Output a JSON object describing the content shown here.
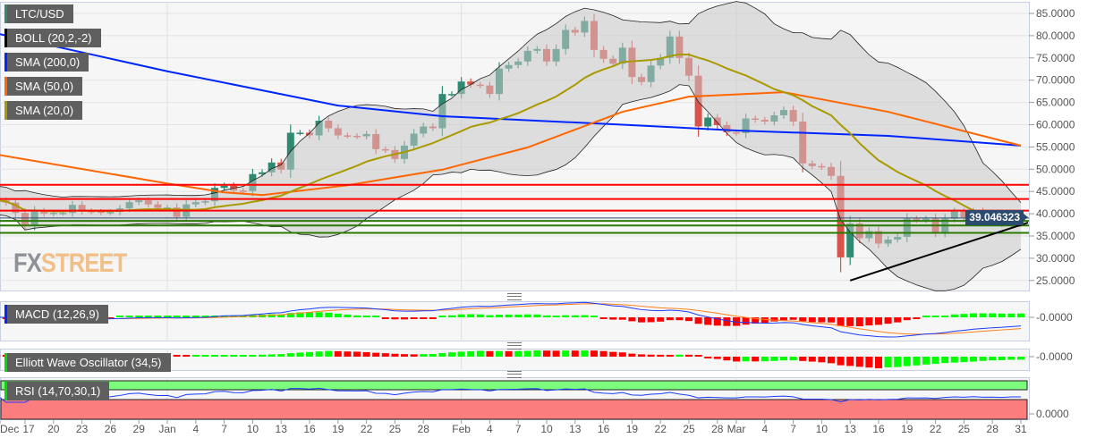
{
  "legend": {
    "symbol": {
      "label": "LTC/USD",
      "color": "#2e8b72"
    },
    "boll": {
      "label": "BOLL (20,2,-2)",
      "color": "#000000"
    },
    "sma200": {
      "label": "SMA (200,0)",
      "color": "#0026ff"
    },
    "sma50": {
      "label": "SMA (50,0)",
      "color": "#ff6600"
    },
    "sma20": {
      "label": "SMA (20,0)",
      "color": "#a89a00"
    }
  },
  "panels": {
    "macd": {
      "label": "MACD (12,26,9)",
      "axis_label": "-0.0000",
      "color": "#0026ff"
    },
    "ewo": {
      "label": "Elliott Wave Oscillator (34,5)",
      "axis_label": "-0.0000",
      "color": "#00dd00"
    },
    "rsi": {
      "label": "RSI (14,70,30,1)",
      "axis_label": "0.0000",
      "color": "#00dd00"
    }
  },
  "price_tag": "39.046323",
  "watermark": {
    "fx": "FX",
    "street": "STREET"
  },
  "colors": {
    "up": "#2e8b72",
    "down": "#d9534a",
    "resistance": "#ff0000",
    "support": "#2a7a00",
    "trendline": "#000000",
    "price_line": "#2b4a6f",
    "hist_up": "#00ff00",
    "hist_down": "#ff0000"
  },
  "chart_data": {
    "type": "candlestick",
    "y_axis": {
      "range": [
        22,
        87
      ],
      "ticks": [
        "85.0000",
        "80.0000",
        "75.0000",
        "70.0000",
        "65.0000",
        "60.0000",
        "55.0000",
        "50.0000",
        "45.0000",
        "40.0000",
        "35.0000",
        "30.0000",
        "25.0000"
      ],
      "tick_values": [
        85,
        80,
        75,
        70,
        65,
        60,
        55,
        50,
        45,
        40,
        35,
        30,
        25
      ]
    },
    "x_ticks": [
      {
        "date": "Dec 14",
        "label": "Dec"
      },
      {
        "date": "Dec 17",
        "label": "17"
      },
      {
        "date": "Dec 20",
        "label": "20"
      },
      {
        "date": "Dec 23",
        "label": "23"
      },
      {
        "date": "Dec 26",
        "label": "26"
      },
      {
        "date": "Dec 29",
        "label": "29"
      },
      {
        "date": "Jan 1",
        "label": "Jan"
      },
      {
        "date": "Jan 4",
        "label": "4"
      },
      {
        "date": "Jan 7",
        "label": "7"
      },
      {
        "date": "Jan 10",
        "label": "10"
      },
      {
        "date": "Jan 13",
        "label": "13"
      },
      {
        "date": "Jan 16",
        "label": "16"
      },
      {
        "date": "Jan 19",
        "label": "19"
      },
      {
        "date": "Jan 22",
        "label": "22"
      },
      {
        "date": "Jan 25",
        "label": "25"
      },
      {
        "date": "Jan 28",
        "label": "28"
      },
      {
        "date": "Feb 1",
        "label": "Feb"
      },
      {
        "date": "Feb 4",
        "label": "4"
      },
      {
        "date": "Feb 7",
        "label": "7"
      },
      {
        "date": "Feb 10",
        "label": "10"
      },
      {
        "date": "Feb 13",
        "label": "13"
      },
      {
        "date": "Feb 16",
        "label": "16"
      },
      {
        "date": "Feb 19",
        "label": "19"
      },
      {
        "date": "Feb 22",
        "label": "22"
      },
      {
        "date": "Feb 25",
        "label": "25"
      },
      {
        "date": "Feb 28",
        "label": "28"
      },
      {
        "date": "Mar 1",
        "label": "Mar"
      },
      {
        "date": "Mar 4",
        "label": "4"
      },
      {
        "date": "Mar 7",
        "label": "7"
      },
      {
        "date": "Mar 10",
        "label": "10"
      },
      {
        "date": "Mar 13",
        "label": "13"
      },
      {
        "date": "Mar 16",
        "label": "16"
      },
      {
        "date": "Mar 19",
        "label": "19"
      },
      {
        "date": "Mar 22",
        "label": "22"
      },
      {
        "date": "Mar 25",
        "label": "25"
      },
      {
        "date": "Mar 28",
        "label": "28"
      },
      {
        "date": "Mar 31",
        "label": "31"
      }
    ],
    "month_starts": [
      "Jan 1",
      "Feb 1",
      "Mar 1"
    ],
    "dates": [
      "Dec 14",
      "Dec 15",
      "Dec 16",
      "Dec 17",
      "Dec 18",
      "Dec 19",
      "Dec 20",
      "Dec 21",
      "Dec 22",
      "Dec 23",
      "Dec 24",
      "Dec 25",
      "Dec 26",
      "Dec 27",
      "Dec 28",
      "Dec 29",
      "Dec 30",
      "Dec 31",
      "Jan 1",
      "Jan 2",
      "Jan 3",
      "Jan 4",
      "Jan 5",
      "Jan 6",
      "Jan 7",
      "Jan 8",
      "Jan 9",
      "Jan 10",
      "Jan 11",
      "Jan 12",
      "Jan 13",
      "Jan 14",
      "Jan 15",
      "Jan 16",
      "Jan 17",
      "Jan 18",
      "Jan 19",
      "Jan 20",
      "Jan 21",
      "Jan 22",
      "Jan 23",
      "Jan 24",
      "Jan 25",
      "Jan 26",
      "Jan 27",
      "Jan 28",
      "Jan 29",
      "Jan 30",
      "Jan 31",
      "Feb 1",
      "Feb 2",
      "Feb 3",
      "Feb 4",
      "Feb 5",
      "Feb 6",
      "Feb 7",
      "Feb 8",
      "Feb 9",
      "Feb 10",
      "Feb 11",
      "Feb 12",
      "Feb 13",
      "Feb 14",
      "Feb 15",
      "Feb 16",
      "Feb 17",
      "Feb 18",
      "Feb 19",
      "Feb 20",
      "Feb 21",
      "Feb 22",
      "Feb 23",
      "Feb 24",
      "Feb 25",
      "Feb 26",
      "Feb 27",
      "Feb 28",
      "Feb 29",
      "Mar 1",
      "Mar 2",
      "Mar 3",
      "Mar 4",
      "Mar 5",
      "Mar 6",
      "Mar 7",
      "Mar 8",
      "Mar 9",
      "Mar 10",
      "Mar 11",
      "Mar 12",
      "Mar 13",
      "Mar 14",
      "Mar 15",
      "Mar 16",
      "Mar 17",
      "Mar 18",
      "Mar 19",
      "Mar 20",
      "Mar 21",
      "Mar 22",
      "Mar 23",
      "Mar 24",
      "Mar 25",
      "Mar 26",
      "Mar 27",
      "Mar 28",
      "Mar 29",
      "Mar 30",
      "Mar 31"
    ],
    "close": [
      43.0,
      42.5,
      40.2,
      37.4,
      40.6,
      40.0,
      40.2,
      40.2,
      42.0,
      40.6,
      40.5,
      40.3,
      40.4,
      41.2,
      42.6,
      43.0,
      42.1,
      41.3,
      41.4,
      39.3,
      42.1,
      42.6,
      42.8,
      45.8,
      46.3,
      45.2,
      45.1,
      48.9,
      49.3,
      51.5,
      49.9,
      58.2,
      58.2,
      57.6,
      60.9,
      59.2,
      57.6,
      57.5,
      57.4,
      57.9,
      54.5,
      54.3,
      52.3,
      55.3,
      58.0,
      59.6,
      59.2,
      66.9,
      66.9,
      69.7,
      69.0,
      68.8,
      66.9,
      72.6,
      73.4,
      74.2,
      76.6,
      77.0,
      74.2,
      77.0,
      81.3,
      80.7,
      83.3,
      76.8,
      74.8,
      73.7,
      77.3,
      70.7,
      69.6,
      73.3,
      75.0,
      79.8,
      75.0,
      71.0,
      59.6,
      61.6,
      59.9,
      58.3,
      58.1,
      61.4,
      61.1,
      60.7,
      62.1,
      63.3,
      60.7,
      51.3,
      50.7,
      50.5,
      48.5,
      30.2,
      37.8,
      34.5,
      36.1,
      33.3,
      34.2,
      34.8,
      38.9,
      38.6,
      38.9,
      35.8,
      38.9,
      40.5,
      39.2,
      40.5,
      38.6,
      38.9,
      37.7,
      38.9,
      39.05
    ],
    "sma200": [
      [
        "Dec 14",
        80.5
      ],
      [
        "Jan 1",
        72.0
      ],
      [
        "Jan 19",
        64.3
      ],
      [
        "Jan 30",
        61.9
      ],
      [
        "Feb 18",
        60.0
      ],
      [
        "Mar 1",
        58.7
      ],
      [
        "Mar 17",
        57.5
      ],
      [
        "Mar 31",
        55.3
      ]
    ],
    "sma50": [
      [
        "Dec 14",
        53.3
      ],
      [
        "Jan 1",
        46.8
      ],
      [
        "Jan 7",
        44.8
      ],
      [
        "Jan 11",
        44.2
      ],
      [
        "Jan 20",
        46.4
      ],
      [
        "Jan 30",
        49.9
      ],
      [
        "Feb 8",
        54.9
      ],
      [
        "Feb 18",
        62.9
      ],
      [
        "Feb 25",
        66.3
      ],
      [
        "Mar 6",
        67.3
      ],
      [
        "Mar 17",
        62.9
      ],
      [
        "Mar 31",
        55.3
      ]
    ],
    "resistance_levels": [
      46.5,
      43.3,
      40.7
    ],
    "support_levels": [
      38.4,
      37.35,
      35.7
    ],
    "trendline": [
      [
        "Mar 13",
        25.0
      ],
      [
        "Mar 31",
        38.0
      ]
    ],
    "last_price": 39.046323
  }
}
